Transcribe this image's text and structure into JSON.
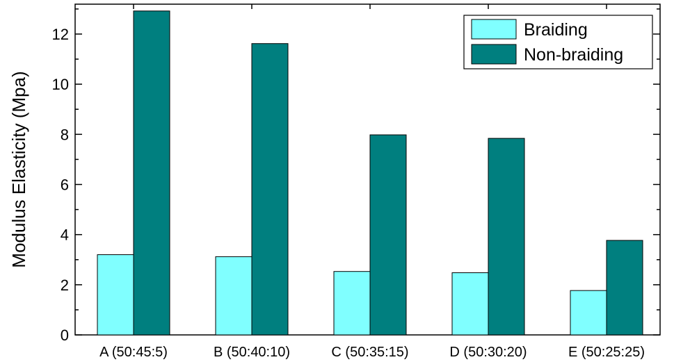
{
  "chart_data": {
    "type": "bar",
    "title": "",
    "xlabel": "",
    "ylabel": "Modulus Elasticity (Mpa)",
    "ylim": [
      0,
      13
    ],
    "yticks": [
      0,
      2,
      4,
      6,
      8,
      10,
      12
    ],
    "ytick_labels": [
      "0",
      "2",
      "4",
      "6",
      "8",
      "10",
      "12"
    ],
    "minor_tick_step": 1,
    "categories": [
      "A (50:45:5)",
      "B (50:40:10)",
      "C (50:35:15)",
      "D (50:30:20)",
      "E (50:25:25)"
    ],
    "series": [
      {
        "name": "Braiding",
        "color": "#80ffff",
        "values": [
          3.2,
          3.12,
          2.53,
          2.48,
          1.77
        ]
      },
      {
        "name": "Non-braiding",
        "color": "#007f7f",
        "values": [
          12.92,
          11.62,
          7.98,
          7.84,
          3.77
        ]
      }
    ],
    "grid": false,
    "legend_position": "top-right"
  }
}
